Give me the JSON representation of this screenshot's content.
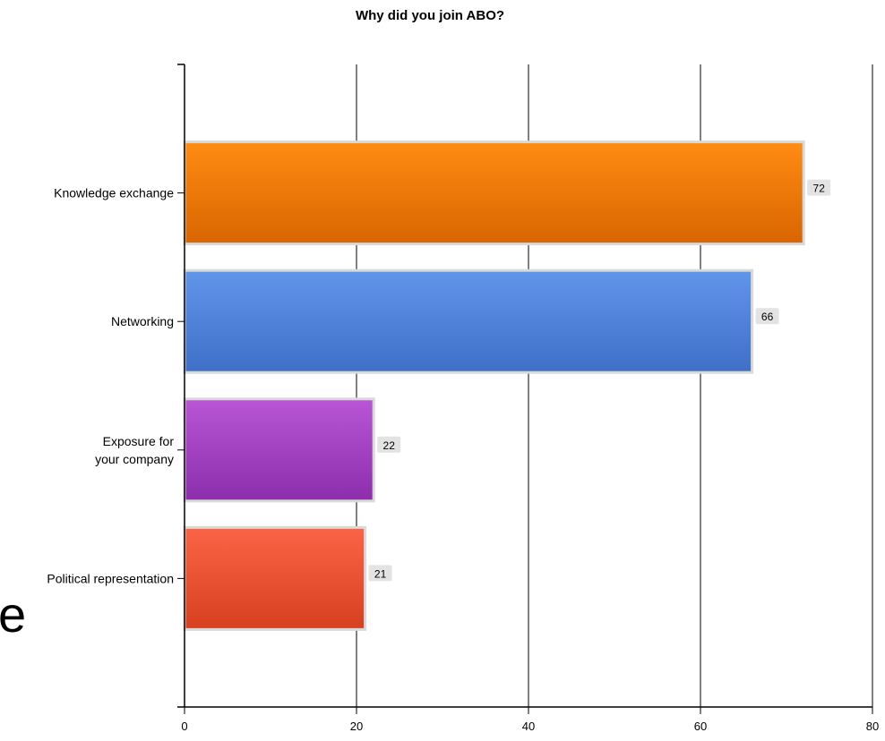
{
  "chart_data": {
    "type": "bar",
    "orientation": "horizontal",
    "title": "Why did you join ABO?",
    "categories": [
      [
        "Knowledge exchange"
      ],
      [
        "Networking"
      ],
      [
        "Exposure for",
        "your company"
      ],
      [
        "Political representation"
      ]
    ],
    "values": [
      72,
      66,
      22,
      21
    ],
    "xlim": [
      0,
      80
    ],
    "xticks": [
      0,
      20,
      40,
      60,
      80
    ],
    "grid": true,
    "data_labels": true,
    "colors": [
      {
        "top": "#ff8c12",
        "bottom": "#d86500"
      },
      {
        "top": "#6195ea",
        "bottom": "#3f6fc8"
      },
      {
        "top": "#b856d6",
        "bottom": "#8c2eac"
      },
      {
        "top": "#fb6446",
        "bottom": "#d6401f"
      }
    ],
    "axis_color": "#000000",
    "bar_border_color": "#d9d9d9",
    "label_box_color": "#e3e3e3"
  },
  "background_text": "e"
}
